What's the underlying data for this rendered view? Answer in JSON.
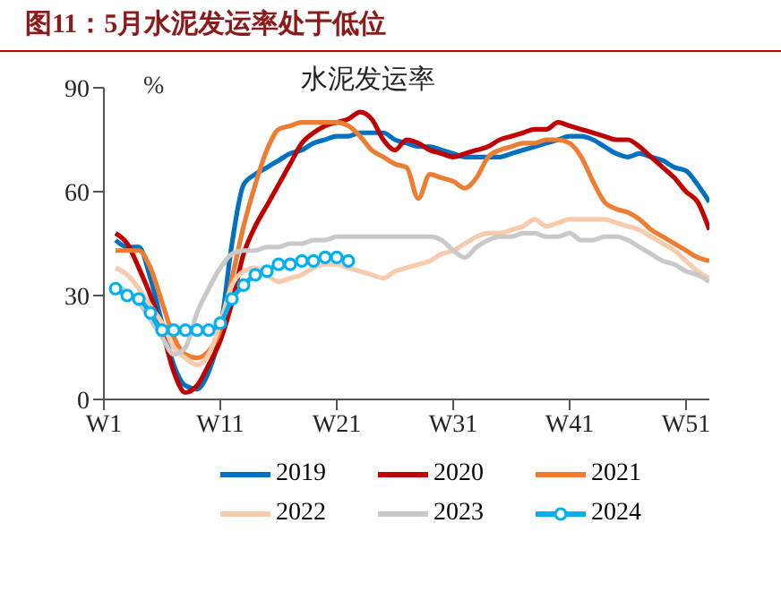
{
  "chart_data": {
    "type": "line",
    "title": "图11：5月水泥发运率处于低位",
    "subtitle": "水泥发运率",
    "ylabel": "%",
    "categories": [
      "W1",
      null,
      null,
      null,
      null,
      null,
      null,
      null,
      null,
      null,
      "W11",
      null,
      null,
      null,
      null,
      null,
      null,
      null,
      null,
      null,
      "W21",
      null,
      null,
      null,
      null,
      null,
      null,
      null,
      null,
      null,
      "W31",
      null,
      null,
      null,
      null,
      null,
      null,
      null,
      null,
      null,
      "W41",
      null,
      null,
      null,
      null,
      null,
      null,
      null,
      null,
      null,
      "W51",
      null,
      null
    ],
    "ylim": [
      0,
      90
    ],
    "yticks": [
      0,
      30,
      60,
      90
    ],
    "legend": "bottom",
    "marker": "none",
    "series": [
      {
        "name": "2019",
        "color": "#0070c0",
        "values": [
          null,
          46,
          44,
          44,
          35,
          22,
          10,
          4,
          3,
          8,
          20,
          45,
          62,
          65,
          67,
          69,
          71,
          72,
          74,
          75,
          76,
          76,
          77,
          77,
          77,
          75,
          74,
          73,
          73,
          72,
          71,
          70,
          70,
          70,
          70,
          71,
          72,
          73,
          74,
          75,
          76,
          76,
          75,
          73,
          71,
          70,
          71,
          70,
          69,
          67,
          66,
          62,
          57
        ]
      },
      {
        "name": "2020",
        "color": "#c00000",
        "values": [
          null,
          48,
          45,
          38,
          30,
          20,
          8,
          2,
          4,
          10,
          17,
          28,
          42,
          50,
          56,
          62,
          68,
          74,
          77,
          79,
          80,
          81,
          83,
          81,
          75,
          72,
          75,
          74,
          72,
          71,
          70,
          71,
          72,
          73,
          75,
          76,
          77,
          78,
          78,
          80,
          79,
          78,
          77,
          76,
          75,
          75,
          73,
          70,
          67,
          64,
          60,
          57,
          49
        ]
      },
      {
        "name": "2021",
        "color": "#ed7d31",
        "values": [
          null,
          43,
          43,
          43,
          38,
          28,
          18,
          13,
          12,
          14,
          20,
          35,
          50,
          62,
          72,
          78,
          79,
          80,
          80,
          80,
          80,
          79,
          76,
          72,
          70,
          68,
          67,
          58,
          65,
          64,
          63,
          61,
          64,
          70,
          72,
          73,
          74,
          74,
          75,
          75,
          74,
          70,
          63,
          57,
          55,
          54,
          52,
          49,
          47,
          45,
          43,
          41,
          40
        ]
      },
      {
        "name": "2022",
        "color": "#f8cbad",
        "values": [
          null,
          38,
          36,
          32,
          27,
          22,
          15,
          12,
          10,
          13,
          22,
          33,
          37,
          38,
          36,
          34,
          35,
          36,
          38,
          39,
          39,
          38,
          37,
          36,
          35,
          37,
          38,
          39,
          40,
          42,
          43,
          45,
          47,
          48,
          48,
          49,
          50,
          52,
          50,
          51,
          52,
          52,
          52,
          52,
          51,
          50,
          49,
          47,
          45,
          43,
          40,
          37,
          35
        ]
      },
      {
        "name": "2023",
        "color": "#c9c9c9",
        "values": [
          null,
          33,
          31,
          28,
          23,
          18,
          13,
          15,
          25,
          32,
          38,
          42,
          43,
          43,
          44,
          44,
          45,
          45,
          46,
          46,
          47,
          47,
          47,
          47,
          47,
          47,
          47,
          47,
          47,
          46,
          43,
          41,
          44,
          46,
          47,
          47,
          48,
          48,
          47,
          47,
          48,
          46,
          46,
          47,
          47,
          46,
          44,
          42,
          40,
          39,
          37,
          36,
          34
        ]
      },
      {
        "name": "2024",
        "color": "#00b0f0",
        "marker": "circle",
        "values": [
          null,
          32,
          30,
          29,
          25,
          20,
          20,
          20,
          20,
          20,
          22,
          29,
          33,
          36,
          37,
          39,
          39,
          40,
          40,
          41,
          41,
          40,
          null,
          null,
          null,
          null,
          null,
          null,
          null,
          null,
          null,
          null,
          null,
          null,
          null,
          null,
          null,
          null,
          null,
          null,
          null,
          null,
          null,
          null,
          null,
          null,
          null,
          null,
          null,
          null,
          null,
          null,
          null
        ]
      }
    ]
  }
}
